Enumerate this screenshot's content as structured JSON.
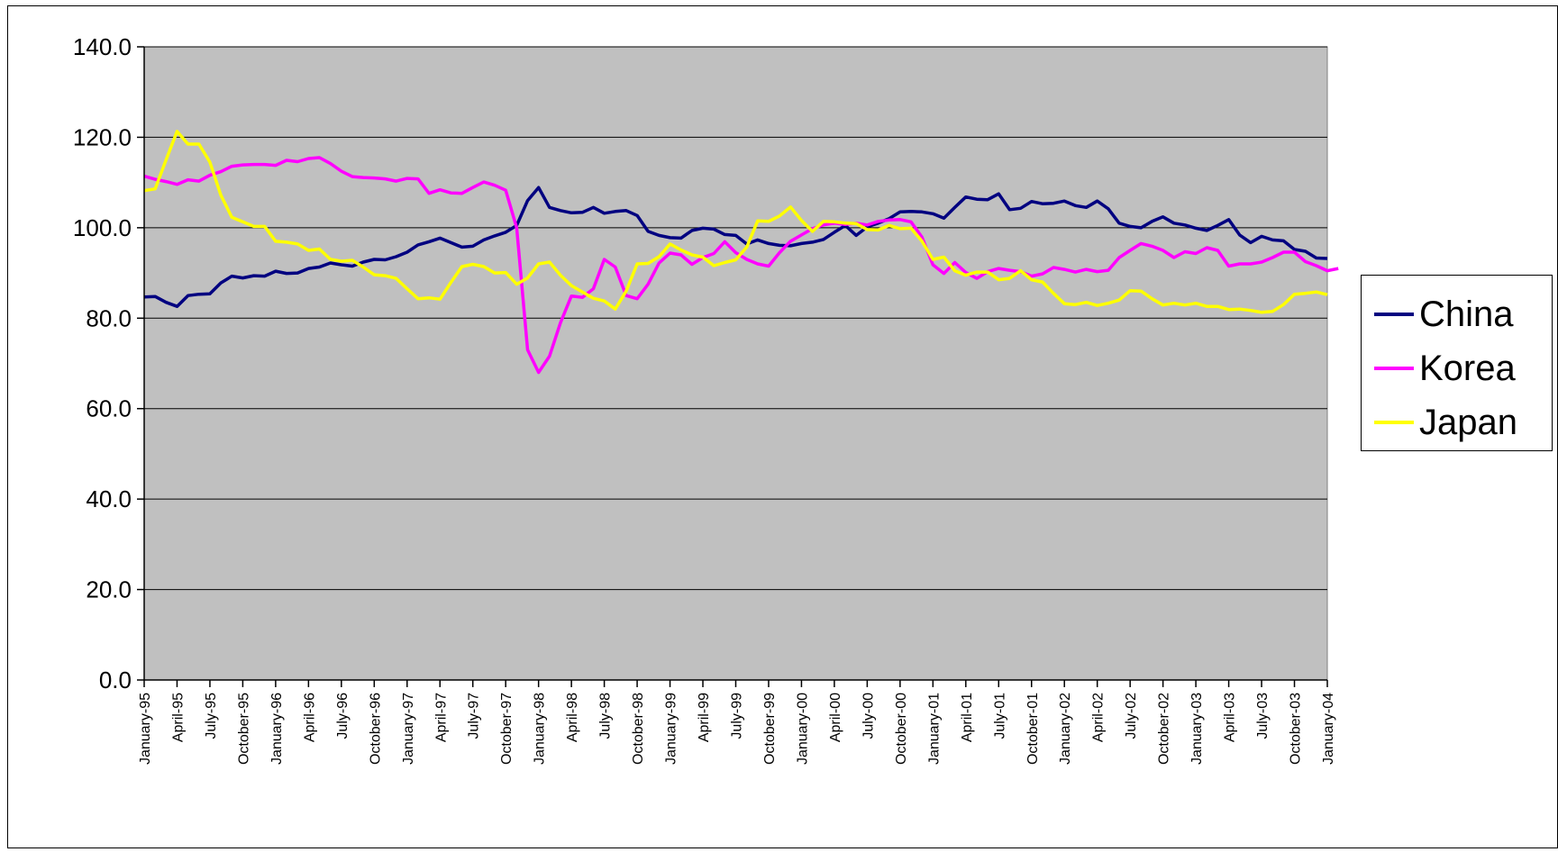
{
  "chart_data": {
    "type": "line",
    "title": "",
    "xlabel": "",
    "ylabel": "",
    "ylim": [
      0,
      140
    ],
    "yticks": [
      "0.0",
      "20.0",
      "40.0",
      "60.0",
      "80.0",
      "100.0",
      "120.0",
      "140.0"
    ],
    "grid": "horizontal",
    "legend_position": "right",
    "plot_background": "#c0c0c0",
    "x_start": "January-95",
    "x_tick_labels": [
      "January-95",
      "April-95",
      "July-95",
      "October-95",
      "January-96",
      "April-96",
      "July-96",
      "October-96",
      "January-97",
      "April-97",
      "July-97",
      "October-97",
      "January-98",
      "April-98",
      "July-98",
      "October-98",
      "January-99",
      "April-99",
      "July-99",
      "October-99",
      "January-00",
      "April-00",
      "July-00",
      "October-00",
      "January-01",
      "April-01",
      "July-01",
      "October-01",
      "January-02",
      "April-02",
      "July-02",
      "October-02",
      "January-03",
      "April-03",
      "July-03",
      "October-03",
      "January-04"
    ],
    "series": [
      {
        "name": "China",
        "color": "#000080",
        "values": [
          84.7,
          84.8,
          83.5,
          82.6,
          85.0,
          85.3,
          85.4,
          87.8,
          89.3,
          88.9,
          89.4,
          89.3,
          90.4,
          89.9,
          90.0,
          91.0,
          91.3,
          92.2,
          91.8,
          91.5,
          92.4,
          93.0,
          92.9,
          93.6,
          94.6,
          96.2,
          96.9,
          97.7,
          96.7,
          95.7,
          95.9,
          97.3,
          98.2,
          99.0,
          100.5,
          106.0,
          108.9,
          104.5,
          103.8,
          103.3,
          103.4,
          104.5,
          103.2,
          103.6,
          103.8,
          102.7,
          99.2,
          98.3,
          97.8,
          97.7,
          99.4,
          99.9,
          99.7,
          98.5,
          98.3,
          96.4,
          97.3,
          96.5,
          96.1,
          96.0,
          96.5,
          96.8,
          97.4,
          99.0,
          100.5,
          98.3,
          100.2,
          101.0,
          102.0,
          103.5,
          103.6,
          103.5,
          103.1,
          102.1,
          104.5,
          106.8,
          106.3,
          106.2,
          107.5,
          104.0,
          104.3,
          105.8,
          105.3,
          105.4,
          105.9,
          104.9,
          104.5,
          105.9,
          104.2,
          101.0,
          100.3,
          100.0,
          101.4,
          102.4,
          101.0,
          100.6,
          99.9,
          99.4,
          100.5,
          101.8,
          98.4,
          96.7,
          98.1,
          97.3,
          97.1,
          95.2,
          94.8,
          93.3,
          93.2
        ]
      },
      {
        "name": "Korea",
        "color": "#ff00ff",
        "values": [
          111.4,
          110.7,
          110.2,
          109.6,
          110.6,
          110.3,
          111.6,
          112.4,
          113.6,
          113.9,
          114.0,
          114.0,
          113.8,
          114.9,
          114.6,
          115.3,
          115.5,
          114.2,
          112.5,
          111.3,
          111.1,
          111.0,
          110.8,
          110.3,
          110.9,
          110.8,
          107.6,
          108.4,
          107.7,
          107.6,
          108.9,
          110.1,
          109.4,
          108.3,
          100.0,
          73.0,
          68.0,
          71.6,
          79.0,
          84.9,
          84.6,
          86.5,
          93.0,
          91.3,
          85.0,
          84.3,
          87.5,
          92.2,
          94.4,
          94.0,
          91.9,
          93.4,
          94.3,
          96.9,
          94.5,
          93.0,
          92.0,
          91.5,
          94.5,
          97.0,
          98.4,
          99.8,
          100.6,
          101.0,
          100.7,
          101.0,
          100.6,
          101.4,
          101.7,
          101.8,
          101.3,
          97.9,
          91.8,
          89.9,
          92.3,
          90.1,
          88.8,
          90.3,
          91.0,
          90.6,
          90.3,
          89.3,
          89.8,
          91.2,
          90.8,
          90.2,
          90.8,
          90.3,
          90.6,
          93.4,
          95.0,
          96.5,
          95.9,
          95.0,
          93.4,
          94.7,
          94.3,
          95.6,
          95.0,
          91.5,
          92.0,
          92.0,
          92.4,
          93.4,
          94.6,
          94.6,
          92.5,
          91.6,
          90.5,
          91.0
        ]
      },
      {
        "name": "Japan",
        "color": "#ffff00",
        "values": [
          108.2,
          108.6,
          115.0,
          121.3,
          118.5,
          118.5,
          114.5,
          107.2,
          102.3,
          101.3,
          100.3,
          100.3,
          97.0,
          96.8,
          96.4,
          95.0,
          95.3,
          93.0,
          92.6,
          92.8,
          91.3,
          89.6,
          89.4,
          88.8,
          86.5,
          84.3,
          84.5,
          84.2,
          87.9,
          91.4,
          91.9,
          91.4,
          90.0,
          90.1,
          87.5,
          88.9,
          92.0,
          92.4,
          89.5,
          87.2,
          85.8,
          84.4,
          83.8,
          82.0,
          86.0,
          92.0,
          92.1,
          93.6,
          96.4,
          95.1,
          94.0,
          93.5,
          91.6,
          92.3,
          92.9,
          95.7,
          101.5,
          101.4,
          102.6,
          104.6,
          101.6,
          99.2,
          101.4,
          101.3,
          101.0,
          100.9,
          99.6,
          99.5,
          100.5,
          99.8,
          99.9,
          97.0,
          93.0,
          93.5,
          90.5,
          89.5,
          90.2,
          90.2,
          88.5,
          88.8,
          90.5,
          88.5,
          88.0,
          85.5,
          83.2,
          83.0,
          83.5,
          82.8,
          83.3,
          84.0,
          86.1,
          86.0,
          84.3,
          82.9,
          83.3,
          82.9,
          83.3,
          82.6,
          82.6,
          81.9,
          82.0,
          81.7,
          81.3,
          81.5,
          83.0,
          85.3,
          85.5,
          85.8,
          85.2
        ]
      }
    ]
  }
}
